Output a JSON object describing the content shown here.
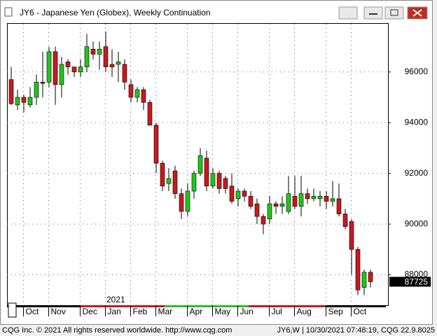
{
  "window_title": "JY6 - Japanese Yen (Globex), Weekly Continuation",
  "chart_data": {
    "type": "candlestick",
    "open": [
      95700,
      94700,
      95000,
      94700,
      95000,
      95600,
      95600,
      96800,
      95500,
      96400,
      96200,
      96000,
      96200,
      96900,
      96700,
      97000,
      96300,
      96300,
      96300,
      95500,
      95000,
      95300,
      94800,
      93900,
      92400,
      91600,
      92100,
      91200,
      90500,
      91300,
      92000,
      92600,
      91500,
      92000,
      91800,
      91500,
      91000,
      91300,
      91100,
      90800,
      90300,
      90200,
      90800,
      90700,
      90500,
      91100,
      90700,
      91200,
      91000,
      91000,
      91100,
      90900,
      91000,
      90400,
      90100,
      89000,
      87500,
      88100
    ],
    "high": [
      96200,
      95300,
      95100,
      95400,
      95900,
      96800,
      97000,
      97000,
      96600,
      96500,
      96200,
      96500,
      97500,
      97200,
      97200,
      97600,
      96900,
      96800,
      96500,
      95700,
      95400,
      95400,
      94900,
      94000,
      92500,
      92200,
      92300,
      91400,
      91600,
      92100,
      93000,
      92900,
      92200,
      92100,
      91900,
      92000,
      91400,
      91400,
      91300,
      91000,
      90400,
      91100,
      90900,
      91100,
      91900,
      91900,
      91900,
      91400,
      91400,
      91300,
      91300,
      91700,
      91600,
      90600,
      90200,
      89100,
      88200,
      88200
    ],
    "low": [
      94700,
      94500,
      94400,
      94600,
      94700,
      95000,
      95400,
      94700,
      95000,
      95900,
      95800,
      95800,
      96000,
      96500,
      96100,
      96000,
      95800,
      95600,
      95300,
      94800,
      94800,
      94500,
      93900,
      92000,
      91300,
      91300,
      91000,
      90200,
      90300,
      91000,
      91900,
      91300,
      91400,
      91200,
      91200,
      90800,
      90700,
      90900,
      90600,
      90000,
      89600,
      90000,
      90400,
      90400,
      90400,
      90600,
      90300,
      90800,
      90900,
      90700,
      90600,
      90700,
      90300,
      89800,
      88000,
      87200,
      87200,
      87500
    ],
    "close": [
      94750,
      95000,
      94800,
      95000,
      95600,
      95550,
      96800,
      95500,
      96300,
      96200,
      96000,
      96200,
      97000,
      96700,
      96900,
      96200,
      96200,
      96400,
      95600,
      95000,
      95300,
      94800,
      93900,
      92400,
      91500,
      91800,
      91200,
      90500,
      91300,
      92000,
      92700,
      91500,
      92000,
      91400,
      91400,
      90900,
      91300,
      91100,
      90700,
      90300,
      90000,
      90800,
      90700,
      90800,
      91200,
      90700,
      91200,
      91000,
      91100,
      91100,
      90900,
      91000,
      90400,
      89900,
      89000,
      87400,
      88100,
      87725
    ],
    "up_color": "#22c41e",
    "down_color": "#c8191e",
    "ylim": [
      86800,
      97900
    ],
    "yticks": [
      88000,
      90000,
      92000,
      94000,
      96000
    ],
    "xticks": [
      {
        "value": 2,
        "label": "Oct"
      },
      {
        "value": 6,
        "label": "Nov"
      },
      {
        "value": 11,
        "label": "Dec"
      },
      {
        "value": 15,
        "label": "Jan"
      },
      {
        "value": 19,
        "label": "Feb"
      },
      {
        "value": 23,
        "label": "Mar"
      },
      {
        "value": 28,
        "label": "Apr"
      },
      {
        "value": 32,
        "label": "May"
      },
      {
        "value": 36,
        "label": "Jun"
      },
      {
        "value": 41,
        "label": "Jul"
      },
      {
        "value": 45,
        "label": "Aug"
      },
      {
        "value": 50,
        "label": "Sep"
      },
      {
        "value": 54,
        "label": "Oct"
      }
    ],
    "year_label": "2021",
    "last_price": 87725,
    "grid": true
  },
  "footer": {
    "left": "CQG Inc. © 2021 All rights reserved worldwide. http://www.cqg.com",
    "right": "JY6,W | 10/30/2021 07:48:19, CQG 22.9.8025"
  }
}
